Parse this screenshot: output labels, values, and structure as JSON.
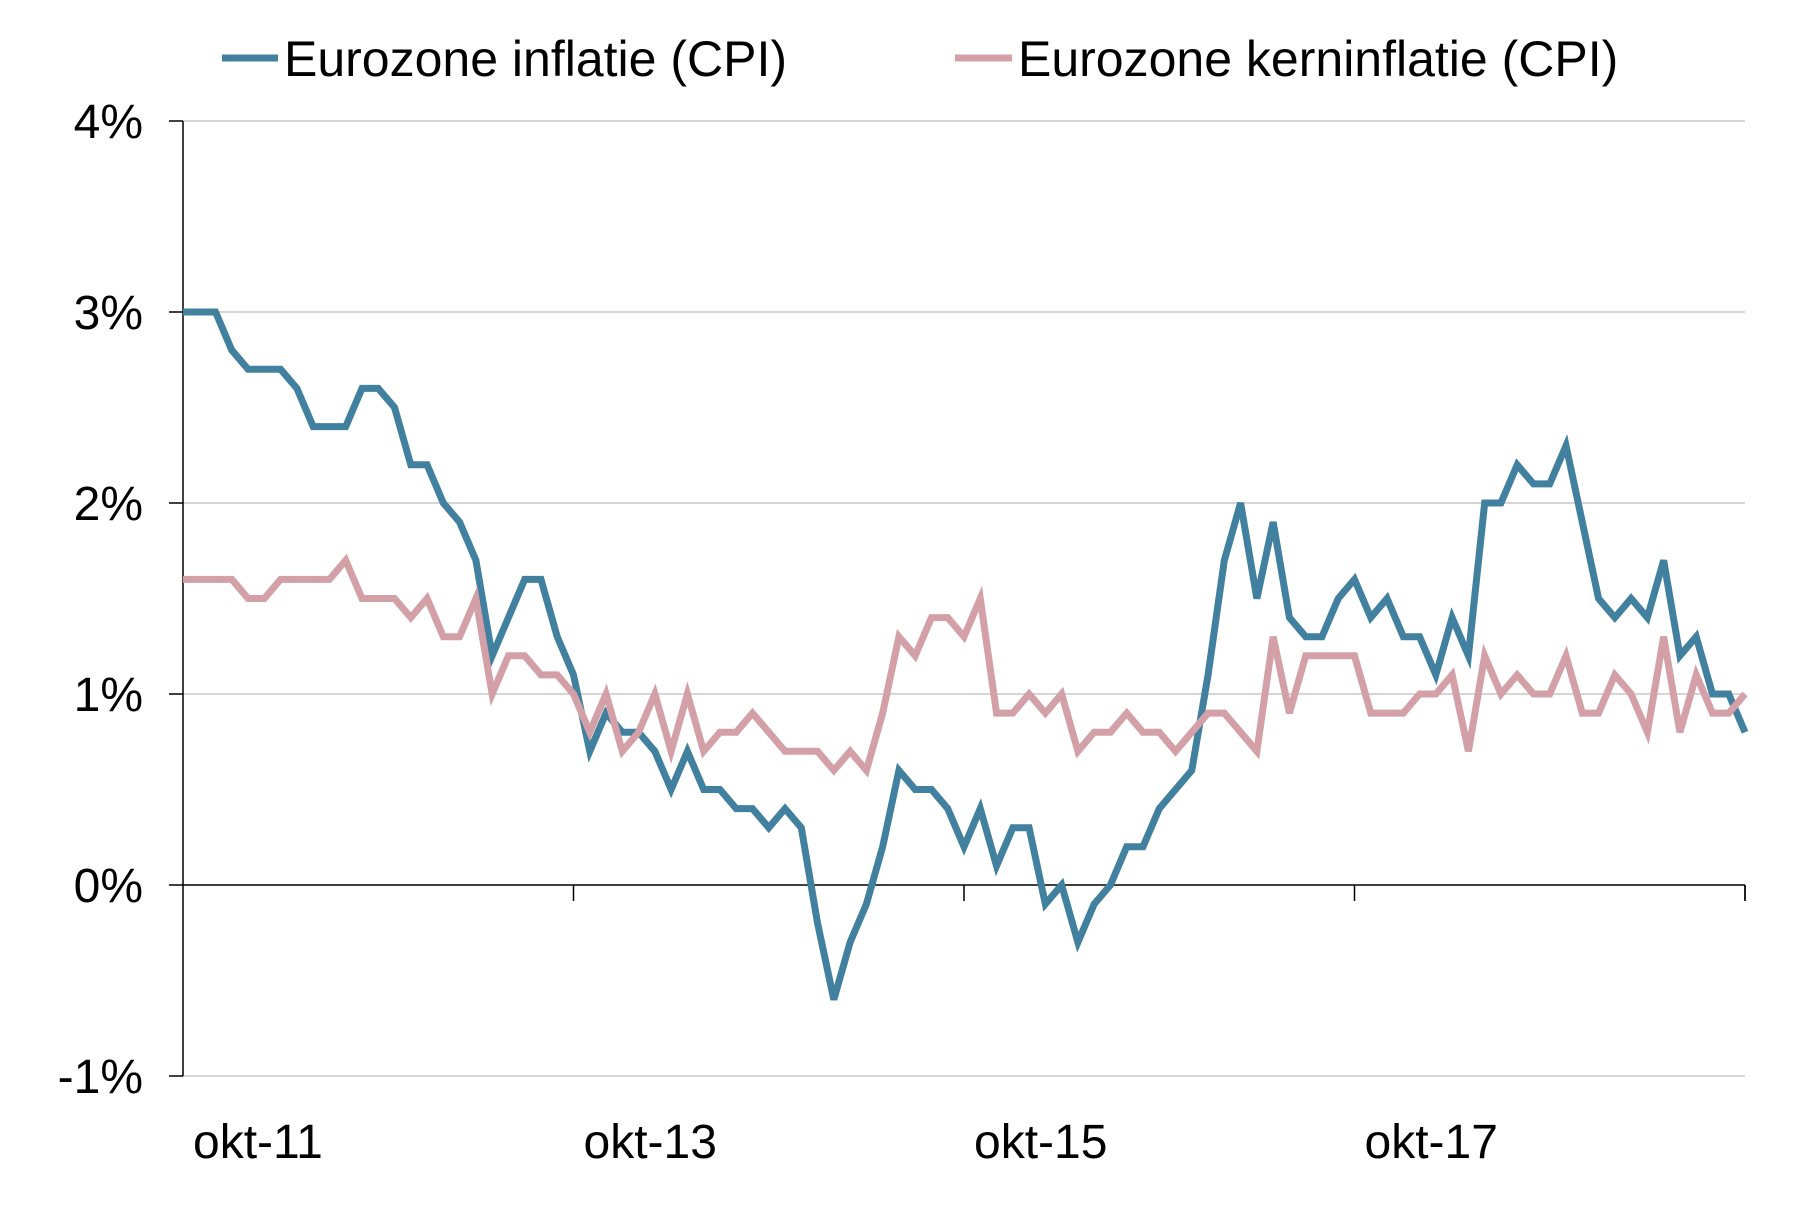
{
  "chart_data": {
    "type": "line",
    "title": "",
    "xlabel": "",
    "ylabel": "",
    "x_start": "okt-11",
    "x_tick_labels": [
      "okt-11",
      "okt-13",
      "okt-15",
      "okt-17"
    ],
    "y_tick_labels": [
      "-1%",
      "0%",
      "1%",
      "2%",
      "3%",
      "4%"
    ],
    "ylim": [
      -1,
      4
    ],
    "grid": "horizontal",
    "legend_position": "top",
    "series": [
      {
        "name": "Eurozone inflatie (CPI)",
        "color": "#41809F",
        "values": [
          3.0,
          3.0,
          3.0,
          2.8,
          2.7,
          2.7,
          2.7,
          2.6,
          2.4,
          2.4,
          2.4,
          2.6,
          2.6,
          2.5,
          2.2,
          2.2,
          2.0,
          1.9,
          1.7,
          1.2,
          1.4,
          1.6,
          1.6,
          1.3,
          1.1,
          0.7,
          0.9,
          0.8,
          0.8,
          0.7,
          0.5,
          0.7,
          0.5,
          0.5,
          0.4,
          0.4,
          0.3,
          0.4,
          0.3,
          -0.2,
          -0.6,
          -0.3,
          -0.1,
          0.2,
          0.6,
          0.5,
          0.5,
          0.4,
          0.2,
          0.4,
          0.1,
          0.3,
          0.3,
          -0.1,
          0.0,
          -0.3,
          -0.1,
          0.0,
          0.2,
          0.2,
          0.4,
          0.5,
          0.6,
          1.1,
          1.7,
          2.0,
          1.5,
          1.9,
          1.4,
          1.3,
          1.3,
          1.5,
          1.6,
          1.4,
          1.5,
          1.3,
          1.3,
          1.1,
          1.4,
          1.2,
          2.0,
          2.0,
          2.2,
          2.1,
          2.1,
          2.3,
          1.9,
          1.5,
          1.4,
          1.5,
          1.4,
          1.7,
          1.2,
          1.3,
          1.0,
          1.0,
          0.8
        ]
      },
      {
        "name": "Eurozone kerninflatie (CPI)",
        "color": "#D4A0A7",
        "values": [
          1.6,
          1.6,
          1.6,
          1.6,
          1.5,
          1.5,
          1.6,
          1.6,
          1.6,
          1.6,
          1.7,
          1.5,
          1.5,
          1.5,
          1.4,
          1.5,
          1.3,
          1.3,
          1.5,
          1.0,
          1.2,
          1.2,
          1.1,
          1.1,
          1.0,
          0.8,
          1.0,
          0.7,
          0.8,
          1.0,
          0.7,
          1.0,
          0.7,
          0.8,
          0.8,
          0.9,
          0.8,
          0.7,
          0.7,
          0.7,
          0.6,
          0.7,
          0.6,
          0.9,
          1.3,
          1.2,
          1.4,
          1.4,
          1.3,
          1.5,
          0.9,
          0.9,
          1.0,
          0.9,
          1.0,
          0.7,
          0.8,
          0.8,
          0.9,
          0.8,
          0.8,
          0.7,
          0.8,
          0.9,
          0.9,
          0.8,
          0.7,
          1.3,
          0.9,
          1.2,
          1.2,
          1.2,
          1.2,
          0.9,
          0.9,
          0.9,
          1.0,
          1.0,
          1.1,
          0.7,
          1.2,
          1.0,
          1.1,
          1.0,
          1.0,
          1.2,
          0.9,
          0.9,
          1.1,
          1.0,
          0.8,
          1.3,
          0.8,
          1.1,
          0.9,
          0.9,
          1.0
        ]
      }
    ]
  }
}
